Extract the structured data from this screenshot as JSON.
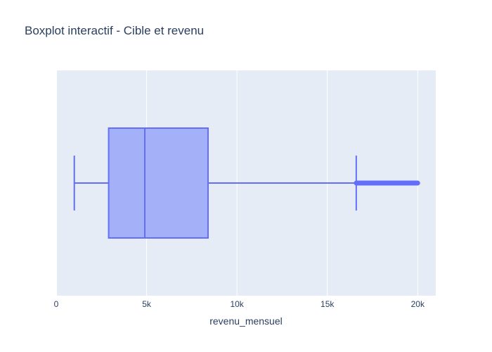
{
  "chart_data": {
    "type": "box",
    "title": "Boxplot interactif - Cible et revenu",
    "xlabel": "revenu_mensuel",
    "ylabel": "",
    "orientation": "horizontal",
    "x_ticks": [
      0,
      5000,
      10000,
      15000,
      20000
    ],
    "x_tick_labels": [
      "0",
      "5k",
      "10k",
      "15k",
      "20k"
    ],
    "xlim": [
      0,
      21000
    ],
    "grid": true,
    "colors": {
      "plot_bg": "#e5ecf6",
      "grid": "#ffffff",
      "box_fill": "#a4b0f8",
      "box_line": "#636efa",
      "text": "#2a3f5f"
    },
    "series": [
      {
        "min": 1000,
        "q1": 2900,
        "median": 4900,
        "q3": 8400,
        "upper_fence": 16600,
        "outliers_range": [
          16600,
          20000
        ]
      }
    ]
  }
}
